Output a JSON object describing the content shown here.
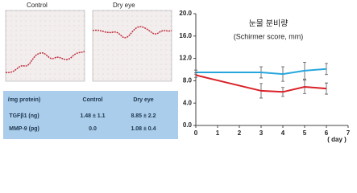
{
  "panels": [
    {
      "label": "Control"
    },
    {
      "label": "Dry eye"
    }
  ],
  "table": {
    "header": [
      "/mg protein)",
      "Control",
      "Dry eye"
    ],
    "rows": [
      [
        "TGFβ1 (ng)",
        "1.48 ± 1.1",
        "8.85 ± 2.2"
      ],
      [
        "MMP-9 (pg)",
        "0.0",
        "1.08 ± 0.4"
      ]
    ]
  },
  "chart_data": {
    "type": "line",
    "title": "눈물 분비량",
    "subtitle": "(Schirmer score, mm)",
    "x_label": "( day )",
    "x": [
      0,
      3,
      4,
      5,
      6
    ],
    "series": [
      {
        "color": "#27a6de",
        "values": [
          9.5,
          9.5,
          9.2,
          9.8,
          10.1
        ],
        "errors": [
          0.4,
          1.0,
          1.3,
          1.5,
          1.0
        ]
      },
      {
        "color": "#d92027",
        "values": [
          9.0,
          6.2,
          6.0,
          6.9,
          6.6
        ],
        "errors": [
          0.4,
          1.3,
          0.8,
          1.2,
          1.0
        ]
      }
    ],
    "xlim": [
      0,
      7
    ],
    "xticks": [
      0,
      1,
      2,
      3,
      4,
      5,
      6,
      7
    ],
    "ylim": [
      0,
      20
    ],
    "yticks": [
      {
        "value": 0,
        "label": "0.0"
      },
      {
        "value": 4,
        "label": "4.0"
      },
      {
        "value": 8,
        "label": "8.0"
      },
      {
        "value": 12,
        "label": "12.0"
      },
      {
        "value": 16,
        "label": "16.0"
      },
      {
        "value": 20,
        "label": "20.0"
      }
    ]
  }
}
